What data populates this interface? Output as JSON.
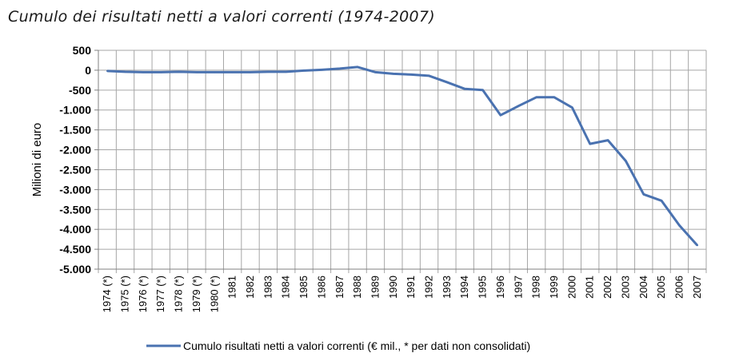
{
  "title": "Cumulo dei risultati netti a valori correnti (1974-2007)",
  "chart_data": {
    "type": "line",
    "title": "Cumulo dei risultati netti a valori correnti (1974-2007)",
    "ylabel": "Milioni di euro",
    "xlabel": "",
    "ylim": [
      -5000,
      500
    ],
    "yticks": [
      500,
      0,
      -500,
      -1000,
      -1500,
      -2000,
      -2500,
      -3000,
      -3500,
      -4000,
      -4500,
      -5000
    ],
    "ytick_labels": [
      "500",
      "0",
      "-500",
      "-1.000",
      "-1.500",
      "-2.000",
      "-2.500",
      "-3.000",
      "-3.500",
      "-4.000",
      "-4.500",
      "-5.000"
    ],
    "grid": true,
    "legend_position": "bottom",
    "categories": [
      "1974 (*)",
      "1975 (*)",
      "1976 (*)",
      "1977 (*)",
      "1978 (*)",
      "1979 (*)",
      "1980 (*)",
      "1981",
      "1982",
      "1983",
      "1984",
      "1985",
      "1986",
      "1987",
      "1988",
      "1989",
      "1990",
      "1991",
      "1992",
      "1993",
      "1994",
      "1995",
      "1996",
      "1997",
      "1998",
      "1999",
      "2000",
      "2001",
      "2002",
      "2003",
      "2004",
      "2005",
      "2006",
      "2007"
    ],
    "series": [
      {
        "name": "Cumulo risultati netti a valori correnti (€ mil., * per dati non consolidati)",
        "color": "#4a72b0",
        "values": [
          -20,
          -40,
          -50,
          -50,
          -40,
          -50,
          -50,
          -50,
          -50,
          -40,
          -40,
          -10,
          10,
          40,
          80,
          -50,
          -90,
          -110,
          -140,
          -300,
          -470,
          -500,
          -1130,
          -900,
          -680,
          -680,
          -940,
          -1850,
          -1760,
          -2280,
          -3120,
          -3280,
          -3900,
          -4400
        ]
      }
    ]
  }
}
